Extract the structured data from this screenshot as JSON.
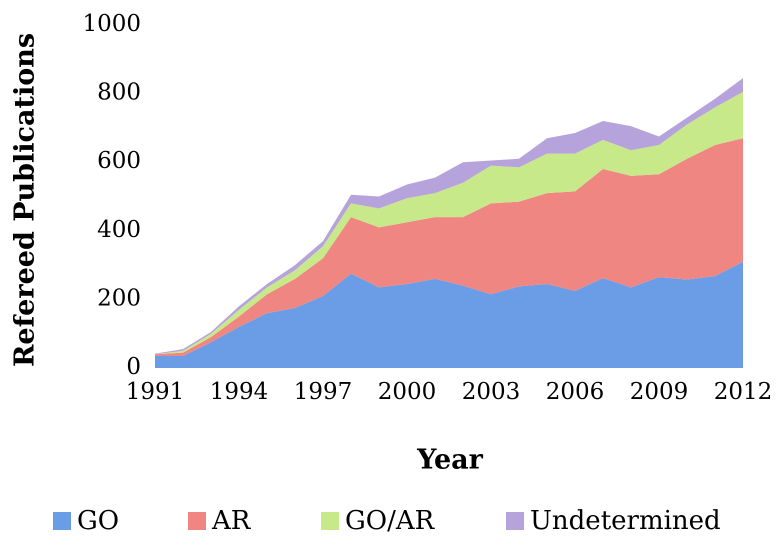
{
  "chart_data": {
    "type": "stacked-area",
    "x_label": "Year",
    "y_label": "Refereed Publications",
    "x": [
      1991,
      1992,
      1993,
      1994,
      1995,
      1996,
      1997,
      1998,
      1999,
      2000,
      2001,
      2002,
      2003,
      2004,
      2005,
      2006,
      2007,
      2008,
      2009,
      2010,
      2011,
      2012
    ],
    "series": [
      {
        "name": "GO",
        "color": "#6b9ce6",
        "values": [
          35,
          35,
          75,
          120,
          160,
          175,
          210,
          275,
          235,
          245,
          260,
          240,
          215,
          238,
          245,
          225,
          262,
          235,
          265,
          258,
          268,
          310
        ]
      },
      {
        "name": "AR",
        "color": "#ef8682",
        "values": [
          5,
          10,
          15,
          30,
          55,
          85,
          110,
          165,
          175,
          180,
          180,
          200,
          265,
          247,
          265,
          290,
          318,
          325,
          300,
          352,
          382,
          360
        ]
      },
      {
        "name": "GO/AR",
        "color": "#c8e98a",
        "values": [
          0,
          5,
          10,
          20,
          20,
          25,
          35,
          40,
          55,
          70,
          70,
          100,
          110,
          100,
          115,
          110,
          85,
          75,
          85,
          100,
          110,
          135
        ]
      },
      {
        "name": "Undetermined",
        "color": "#b7a3dc",
        "values": [
          2,
          5,
          5,
          10,
          10,
          15,
          15,
          25,
          35,
          40,
          45,
          60,
          15,
          25,
          45,
          60,
          55,
          70,
          25,
          20,
          25,
          40
        ]
      }
    ],
    "xlim": [
      1991,
      2012
    ],
    "xticks": [
      1991,
      1994,
      1997,
      2000,
      2003,
      2006,
      2009,
      2012
    ],
    "ylim": [
      0,
      1000
    ],
    "yticks": [
      0,
      200,
      400,
      600,
      800,
      1000
    ],
    "legend": "bottom"
  }
}
